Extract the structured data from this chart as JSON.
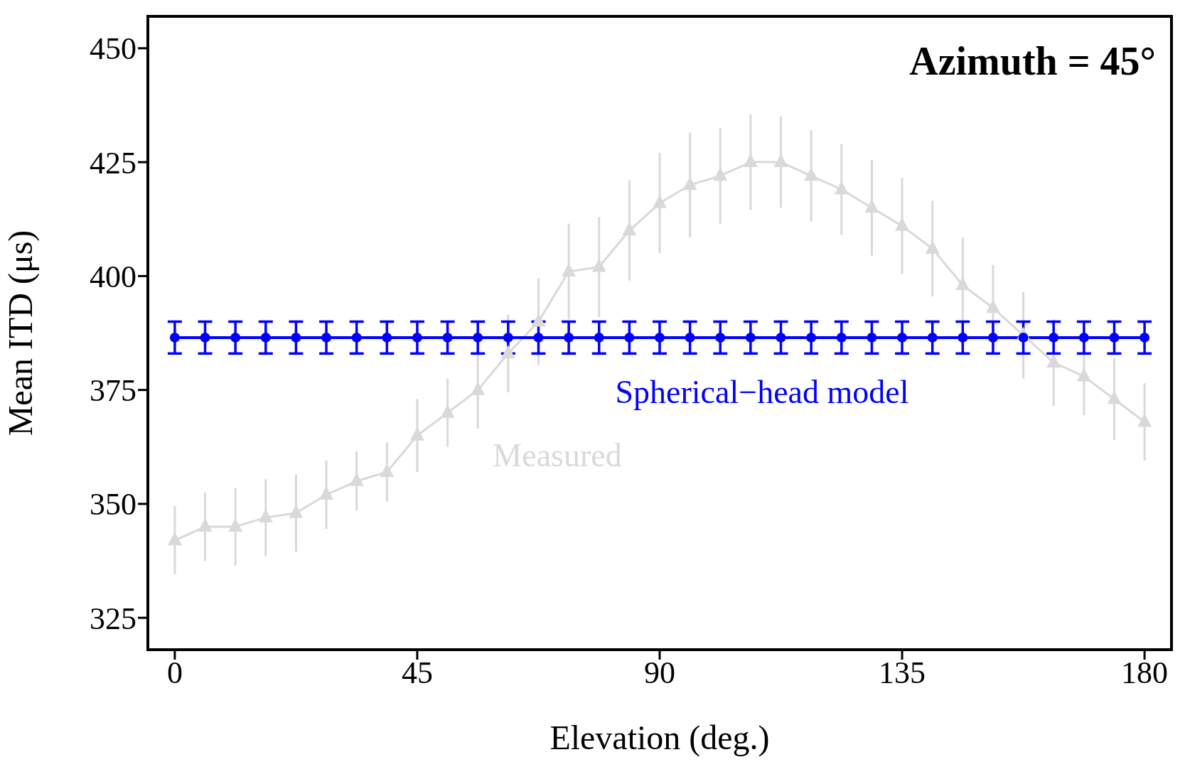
{
  "chart_data": {
    "type": "line",
    "xlabel": "Elevation (deg.)",
    "ylabel": "Mean ITD (μs)",
    "annotations": [
      "Azimuth = 45°"
    ],
    "x": [
      0,
      5.625,
      11.25,
      16.875,
      22.5,
      28.125,
      33.75,
      39.375,
      45,
      50.625,
      56.25,
      61.875,
      67.5,
      73.125,
      78.75,
      84.375,
      90,
      95.625,
      101.25,
      106.875,
      112.5,
      118.125,
      123.75,
      129.375,
      135,
      140.625,
      146.25,
      151.875,
      157.5,
      163.125,
      168.75,
      174.375,
      180
    ],
    "series": [
      {
        "name": "Measured",
        "color": "#d9d9d9",
        "marker": "triangle",
        "values": [
          342,
          345,
          345,
          347,
          348,
          352,
          355,
          357,
          365,
          370,
          375,
          383,
          390,
          401,
          402,
          410,
          416,
          420,
          422,
          425,
          425,
          422,
          419,
          415,
          411,
          406,
          398,
          393,
          387,
          381,
          378,
          373,
          368
        ],
        "errors": [
          7.5,
          7.5,
          8.5,
          8.5,
          8.5,
          7.5,
          6.5,
          6.5,
          8,
          7.5,
          8.5,
          8.5,
          9.5,
          10.5,
          11,
          11,
          11,
          11.5,
          10.5,
          10.5,
          10,
          10,
          10,
          10.5,
          10.5,
          10.5,
          10.5,
          9.5,
          9.5,
          9.5,
          8.5,
          9,
          8.5
        ]
      },
      {
        "name": "Spherical−head model",
        "color": "#0000ff",
        "marker": "circle",
        "values": [
          386.5,
          386.5,
          386.5,
          386.5,
          386.5,
          386.5,
          386.5,
          386.5,
          386.5,
          386.5,
          386.5,
          386.5,
          386.5,
          386.5,
          386.5,
          386.5,
          386.5,
          386.5,
          386.5,
          386.5,
          386.5,
          386.5,
          386.5,
          386.5,
          386.5,
          386.5,
          386.5,
          386.5,
          386.5,
          386.5,
          386.5,
          386.5,
          386.5
        ],
        "errors": [
          3.5,
          3.5,
          3.5,
          3.5,
          3.5,
          3.5,
          3.5,
          3.5,
          3.5,
          3.5,
          3.5,
          3.5,
          3.5,
          3.5,
          3.5,
          3.5,
          3.5,
          3.5,
          3.5,
          3.5,
          3.5,
          3.5,
          3.5,
          3.5,
          3.5,
          3.5,
          3.5,
          3.5,
          3.5,
          3.5,
          3.5,
          3.5,
          3.5
        ]
      }
    ],
    "xlim": [
      -5,
      185
    ],
    "xticks": [
      0,
      45,
      90,
      135,
      180
    ],
    "ylim": [
      318,
      457
    ],
    "yticks": [
      325,
      350,
      375,
      400,
      425,
      450
    ],
    "grid": false,
    "legend": false
  }
}
